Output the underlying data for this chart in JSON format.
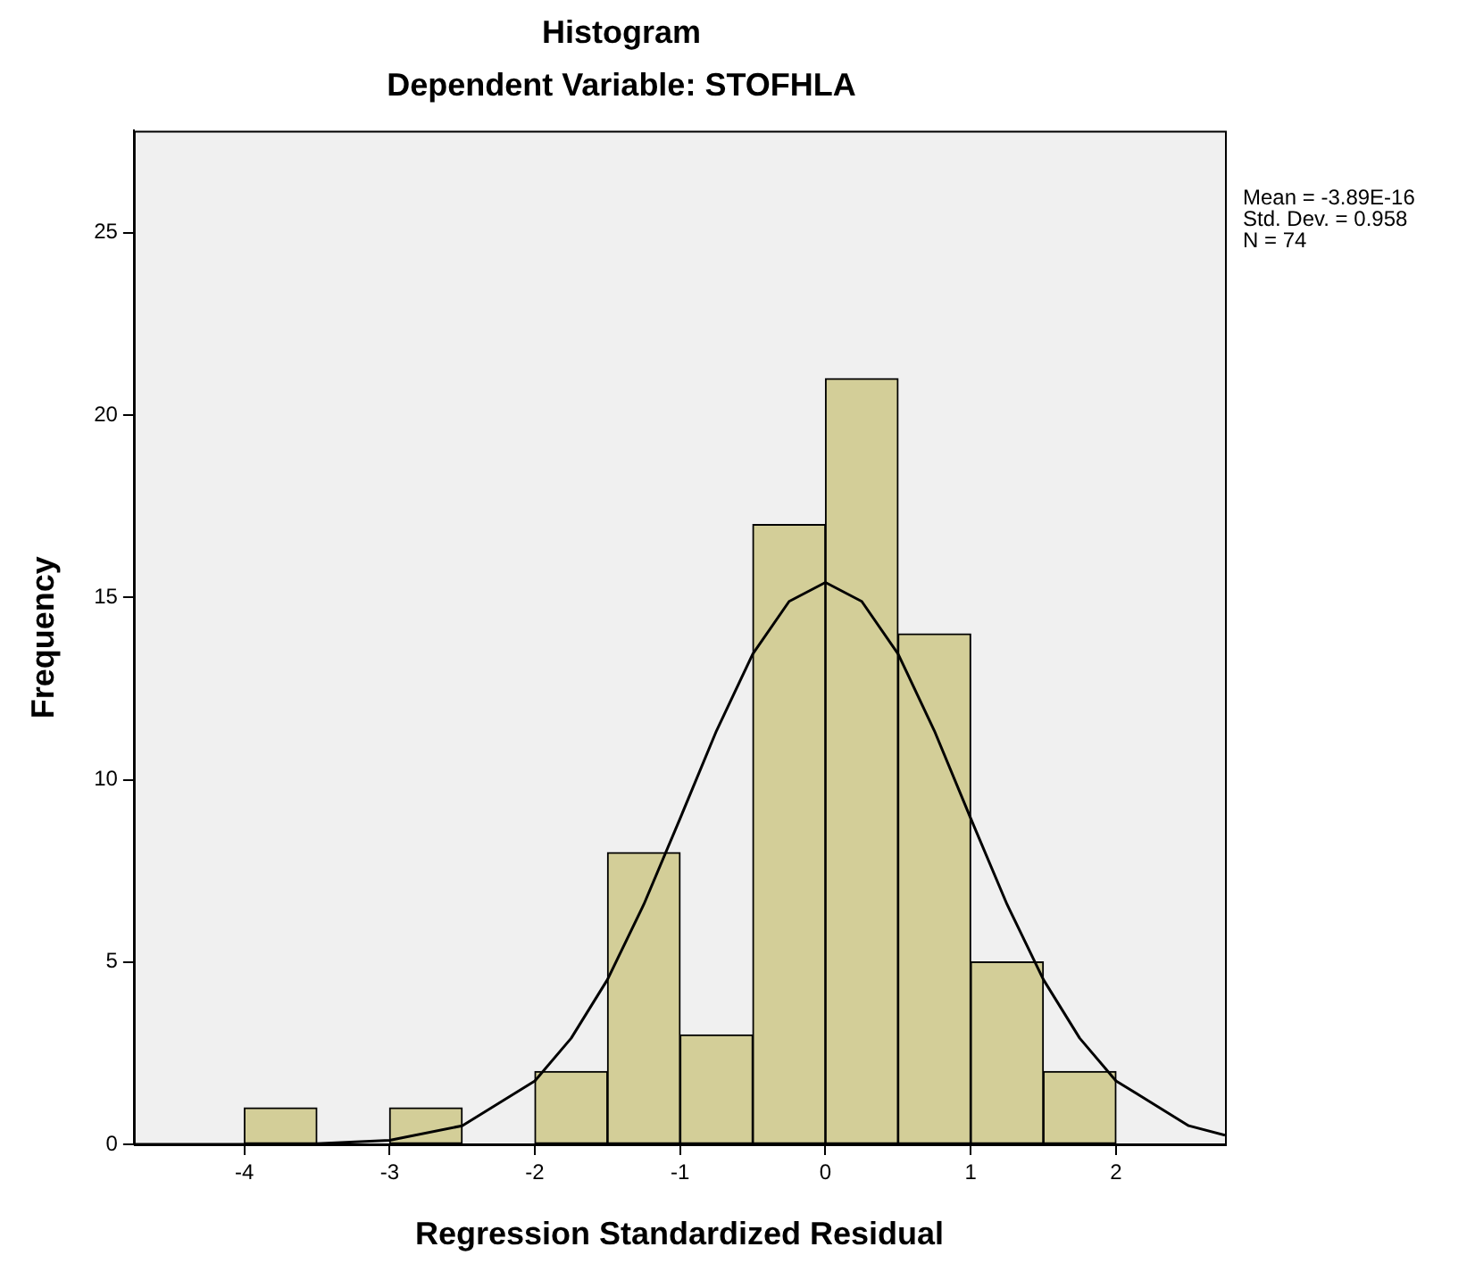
{
  "chart_data": {
    "type": "histogram",
    "title": "Histogram",
    "subtitle": "Dependent Variable: STOFHLA",
    "xlabel": "Regression Standardized Residual",
    "ylabel": "Frequency",
    "bins": [
      -4,
      -3.5,
      -3,
      -2.5,
      -2,
      -1.5,
      -1,
      -0.5,
      0,
      0.5,
      1,
      1.5,
      2
    ],
    "values": [
      1,
      0,
      1,
      0,
      2,
      8,
      3,
      17,
      21,
      14,
      5,
      2
    ],
    "color": "#d3ce98",
    "series": [
      {
        "type": "line",
        "color": "#000000",
        "x": [
          -4.75,
          -4,
          -3.5,
          -3,
          -2.5,
          -2,
          -1.75,
          -1.5,
          -1.25,
          -1,
          -0.75,
          -0.5,
          -0.25,
          0,
          0.25,
          0.5,
          0.75,
          1,
          1.25,
          1.5,
          1.75,
          2,
          2.5,
          2.75
        ],
        "values": [
          0,
          0,
          0.02,
          0.11,
          0.51,
          1.74,
          2.91,
          4.52,
          6.58,
          8.94,
          11.34,
          13.45,
          14.89,
          15.41,
          14.89,
          13.45,
          11.34,
          8.94,
          6.58,
          4.52,
          2.91,
          1.74,
          0.51,
          0.25
        ]
      }
    ],
    "xlim": [
      -4.76,
      2.75
    ],
    "xticks": [
      -4,
      -3,
      -2,
      -1,
      0,
      1,
      2
    ],
    "ylim": [
      0,
      27.8
    ],
    "yticks": [
      0,
      5,
      10,
      15,
      20,
      25
    ],
    "grid": false,
    "legend": false,
    "annotations": [
      "Mean = -3.89E-16",
      "Std. Dev. = 0.958",
      "N = 74"
    ]
  }
}
